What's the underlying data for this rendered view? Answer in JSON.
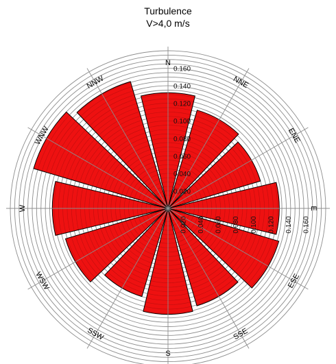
{
  "chart_data": {
    "type": "polar-bar",
    "title": "Turbulence",
    "subtitle": "V>4,0 m/s",
    "directions": [
      "N",
      "NNE",
      "ENE",
      "E",
      "ESE",
      "SSE",
      "S",
      "SSW",
      "WSW",
      "W",
      "WNW",
      "NNW"
    ],
    "direction_labels": [
      "N",
      "NNE",
      "ENE",
      "E",
      "ESE",
      "SSE",
      "S",
      "SSW",
      "WSW",
      "W",
      "WNW",
      "NNW"
    ],
    "values": [
      0.132,
      0.117,
      0.11,
      0.127,
      0.132,
      0.116,
      0.121,
      0.105,
      0.122,
      0.132,
      0.16,
      0.151
    ],
    "radial_ticks": [
      0.02,
      0.04,
      0.06,
      0.08,
      0.1,
      0.12,
      0.14,
      0.16
    ],
    "radial_tick_labels_north": [
      "0.020",
      "0.040",
      "0.060",
      "0.080",
      "0.100",
      "0.120",
      "0.140",
      "0.160"
    ],
    "radial_tick_labels_east": [
      "0.020",
      "0.040",
      "0.060",
      "0.080",
      "0.100",
      "0.120",
      "0.140",
      "0.160"
    ],
    "r_max": 0.18,
    "ring_step": 0.005,
    "grid": true,
    "colors": {
      "bar": "#ee1111",
      "bar_edge": "#000000",
      "grid": "#8c8c8c",
      "axis": "#000000"
    }
  }
}
